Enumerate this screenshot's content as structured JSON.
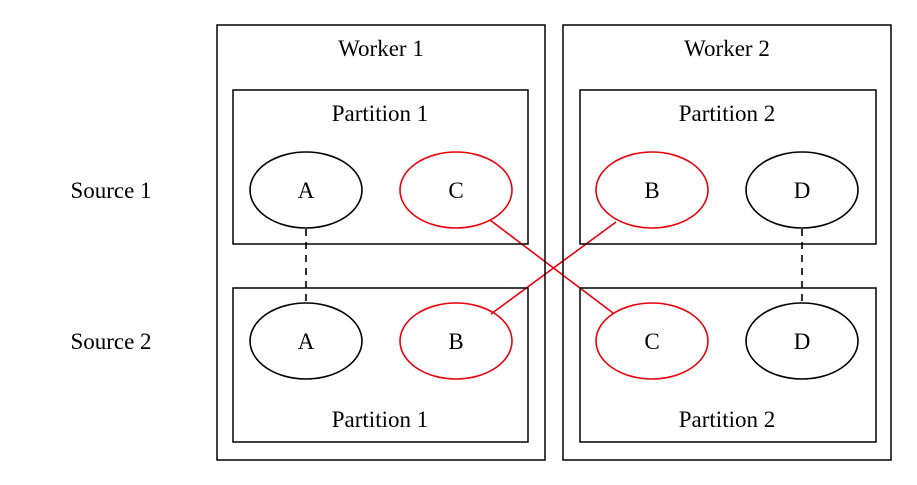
{
  "rows": [
    {
      "label": "Source 1"
    },
    {
      "label": "Source 2"
    }
  ],
  "workers": [
    {
      "title": "Worker 1",
      "partitions": [
        {
          "title": "Partition 1",
          "title_position": "top",
          "nodes": [
            {
              "label": "A",
              "shuffled": false
            },
            {
              "label": "C",
              "shuffled": true
            }
          ]
        },
        {
          "title": "Partition 1",
          "title_position": "bottom",
          "nodes": [
            {
              "label": "A",
              "shuffled": false
            },
            {
              "label": "B",
              "shuffled": true
            }
          ]
        }
      ]
    },
    {
      "title": "Worker 2",
      "partitions": [
        {
          "title": "Partition 2",
          "title_position": "top",
          "nodes": [
            {
              "label": "B",
              "shuffled": true
            },
            {
              "label": "D",
              "shuffled": false
            }
          ]
        },
        {
          "title": "Partition 2",
          "title_position": "bottom",
          "nodes": [
            {
              "label": "C",
              "shuffled": true
            },
            {
              "label": "D",
              "shuffled": false
            }
          ]
        }
      ]
    }
  ],
  "edges": [
    {
      "from": "Worker 1 / Source 1 / A",
      "to": "Worker 1 / Source 2 / A",
      "style": "dashed",
      "color": "#000000"
    },
    {
      "from": "Worker 2 / Source 1 / D",
      "to": "Worker 2 / Source 2 / D",
      "style": "dashed",
      "color": "#000000"
    },
    {
      "from": "Worker 1 / Source 1 / C",
      "to": "Worker 2 / Source 2 / C",
      "style": "solid",
      "color": "#e8000b"
    },
    {
      "from": "Worker 2 / Source 1 / B",
      "to": "Worker 1 / Source 2 / B",
      "style": "solid",
      "color": "#e8000b"
    }
  ],
  "colors": {
    "normal": "#000000",
    "shuffled": "#e8000b",
    "background": "#ffffff"
  }
}
